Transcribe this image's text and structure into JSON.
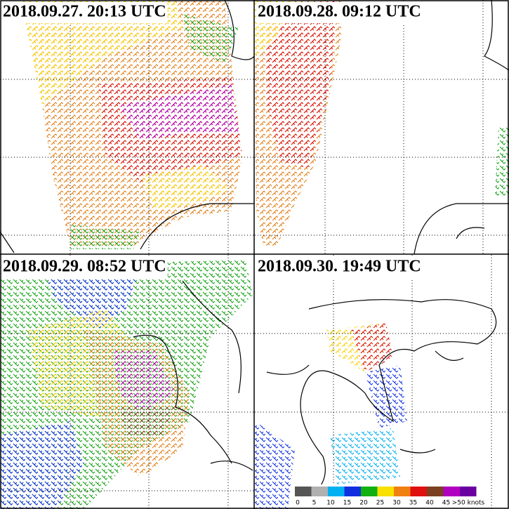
{
  "panels": [
    {
      "title": "2018.09.27. 20:13 UTC"
    },
    {
      "title": "2018.09.28. 09:12 UTC"
    },
    {
      "title": "2018.09.29. 08:52 UTC"
    },
    {
      "title": "2018.09.30. 19:49 UTC"
    }
  ],
  "colorbar": {
    "labels": [
      "0",
      "5",
      "10",
      "15",
      "20",
      "25",
      "30",
      "35",
      "40",
      "45",
      ">50 knots"
    ],
    "colors": [
      "#555555",
      "#b0b0b0",
      "#00b0f0",
      "#1030e0",
      "#10b010",
      "#f8e000",
      "#f08010",
      "#e01010",
      "#7a4020",
      "#b000c0",
      "#6a00a0"
    ]
  }
}
